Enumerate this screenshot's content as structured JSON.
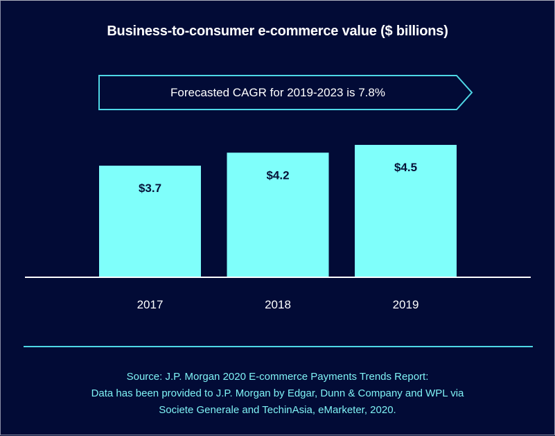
{
  "chart_data": {
    "type": "bar",
    "title": "Business-to-consumer e-commerce value ($ billions)",
    "categories": [
      "2017",
      "2018",
      "2019"
    ],
    "values": [
      3.7,
      4.2,
      4.5
    ],
    "data_labels": [
      "$3.7",
      "$4.2",
      "$4.5"
    ],
    "xlabel": "",
    "ylabel": "",
    "ylim": [
      0,
      4.5
    ],
    "grid": false,
    "legend": "none",
    "annotation": "Forecasted CAGR for 2019-2023 is 7.8%",
    "colors": {
      "background": "#020b36",
      "bar": "#7ffffb",
      "bar_label": "#061238",
      "accent": "#4fd8e6",
      "axis": "#ffffff",
      "source_text": "#7ff2f5"
    }
  },
  "source": {
    "lines": [
      "Source: J.P. Morgan 2020 E-commerce Payments Trends Report:",
      "Data has been provided to J.P. Morgan by Edgar, Dunn & Company and WPL via",
      "Societe Generale and TechinAsia, eMarketer, 2020."
    ]
  }
}
